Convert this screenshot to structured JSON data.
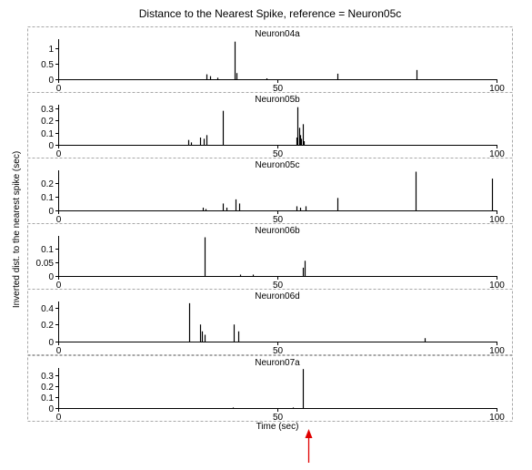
{
  "chart_data": {
    "type": "bar",
    "title": "Distance to the Nearest Spike, reference = Neuron05c",
    "xlabel": "Time (sec)",
    "ylabel": "Inverted dist. to the nearest spike (sec)",
    "xlim": [
      0,
      100
    ],
    "x_ticks": [
      0,
      50,
      100
    ],
    "grid": false,
    "colors": {
      "bars": "#000000",
      "frame": "#a8a8a8",
      "marker": "#e00000"
    },
    "marker_x": 57,
    "panels": [
      {
        "name": "Neuron04a",
        "ylim": [
          0,
          1.3
        ],
        "y_ticks": [
          0,
          0.5,
          1
        ],
        "y_tick_labels": [
          "0",
          "0.5",
          "1"
        ],
        "spikes": [
          [
            33.8,
            0.16
          ],
          [
            34.6,
            0.1
          ],
          [
            36.4,
            0.05
          ],
          [
            40.3,
            1.22
          ],
          [
            40.6,
            0.2
          ],
          [
            47.5,
            0.03
          ],
          [
            63.7,
            0.18
          ],
          [
            81.8,
            0.3
          ]
        ]
      },
      {
        "name": "Neuron05b",
        "ylim": [
          0,
          0.33
        ],
        "y_ticks": [
          0,
          0.1,
          0.2,
          0.3
        ],
        "y_tick_labels": [
          "0",
          "0.1",
          "0.2",
          "0.3"
        ],
        "spikes": [
          [
            29.6,
            0.04
          ],
          [
            30.2,
            0.02
          ],
          [
            32.3,
            0.06
          ],
          [
            33.2,
            0.05
          ],
          [
            33.8,
            0.08
          ],
          [
            37.5,
            0.28
          ],
          [
            54.3,
            0.06
          ],
          [
            54.6,
            0.31
          ],
          [
            54.9,
            0.14
          ],
          [
            55.1,
            0.08
          ],
          [
            55.4,
            0.05
          ],
          [
            55.8,
            0.17
          ],
          [
            56.1,
            0.03
          ]
        ]
      },
      {
        "name": "Neuron05c",
        "ylim": [
          0,
          0.29
        ],
        "y_ticks": [
          0,
          0.1,
          0.2
        ],
        "y_tick_labels": [
          "0",
          "0.1",
          "0.2"
        ],
        "spikes": [
          [
            33.0,
            0.02
          ],
          [
            33.6,
            0.01
          ],
          [
            37.5,
            0.05
          ],
          [
            38.4,
            0.02
          ],
          [
            40.5,
            0.08
          ],
          [
            41.2,
            0.05
          ],
          [
            54.4,
            0.03
          ],
          [
            55.2,
            0.02
          ],
          [
            56.5,
            0.03
          ],
          [
            63.6,
            0.09
          ],
          [
            81.5,
            0.28
          ],
          [
            99.0,
            0.23
          ]
        ]
      },
      {
        "name": "Neuron06b",
        "ylim": [
          0,
          0.145
        ],
        "y_ticks": [
          0,
          0.05,
          0.1
        ],
        "y_tick_labels": [
          "0",
          "0.05",
          "0.1"
        ],
        "spikes": [
          [
            33.5,
            0.14
          ],
          [
            41.5,
            0.005
          ],
          [
            44.5,
            0.005
          ],
          [
            55.8,
            0.03
          ],
          [
            56.2,
            0.055
          ]
        ]
      },
      {
        "name": "Neuron06d",
        "ylim": [
          0,
          0.47
        ],
        "y_ticks": [
          0,
          0.2,
          0.4
        ],
        "y_tick_labels": [
          "0",
          "0.2",
          "0.4"
        ],
        "spikes": [
          [
            29.8,
            0.45
          ],
          [
            32.3,
            0.2
          ],
          [
            32.8,
            0.12
          ],
          [
            33.3,
            0.08
          ],
          [
            40.1,
            0.2
          ],
          [
            41.0,
            0.12
          ],
          [
            83.6,
            0.04
          ]
        ]
      },
      {
        "name": "Neuron07a",
        "ylim": [
          0,
          0.37
        ],
        "y_ticks": [
          0,
          0.1,
          0.2,
          0.3
        ],
        "y_tick_labels": [
          "0",
          "0.1",
          "0.2",
          "0.3"
        ],
        "spikes": [
          [
            39.8,
            0.005
          ],
          [
            53.5,
            0.005
          ],
          [
            55.8,
            0.36
          ]
        ]
      }
    ]
  }
}
